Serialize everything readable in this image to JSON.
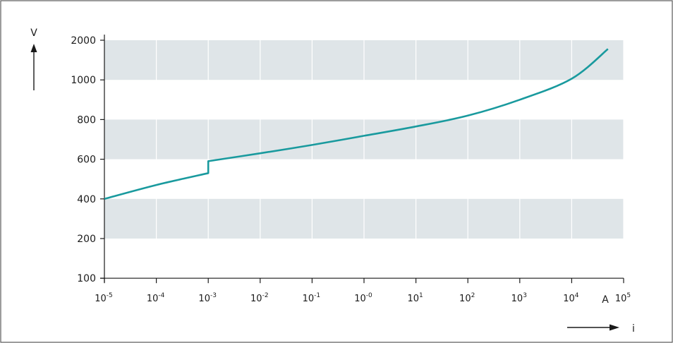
{
  "chart_data": {
    "type": "line",
    "title": "",
    "xlabel": "i",
    "x_unit": "A",
    "ylabel": "V",
    "x_scale": "log",
    "y_scale": "nonlinear-category",
    "x_ticks": [
      {
        "base": "10",
        "exp": "-5",
        "value": 1e-05
      },
      {
        "base": "10",
        "exp": "-4",
        "value": 0.0001
      },
      {
        "base": "10",
        "exp": "-3",
        "value": 0.001
      },
      {
        "base": "10",
        "exp": "-2",
        "value": 0.01
      },
      {
        "base": "10",
        "exp": "-1",
        "value": 0.1
      },
      {
        "base": "10",
        "exp": "-0",
        "value": 1
      },
      {
        "base": "10",
        "exp": "1",
        "value": 10
      },
      {
        "base": "10",
        "exp": "2",
        "value": 100
      },
      {
        "base": "10",
        "exp": "3",
        "value": 1000
      },
      {
        "base": "10",
        "exp": "4",
        "value": 10000
      },
      {
        "base": "10",
        "exp": "5",
        "value": 100000
      }
    ],
    "y_ticks": [
      "100",
      "200",
      "400",
      "600",
      "800",
      "1000",
      "2000"
    ],
    "grid": {
      "horizontal_bands": "alternating grey/white",
      "vertical_gridlines": true,
      "band_color": "#dfe5e8"
    },
    "line_color": "#199a9e",
    "series": [
      {
        "name": "",
        "x": [
          1e-05,
          0.0001,
          0.001,
          0.001,
          0.01,
          0.1,
          1,
          10,
          100,
          1000,
          10000,
          50000
        ],
        "y": [
          400,
          470,
          530,
          590,
          630,
          672,
          718,
          765,
          820,
          900,
          1030,
          1780
        ]
      }
    ]
  }
}
